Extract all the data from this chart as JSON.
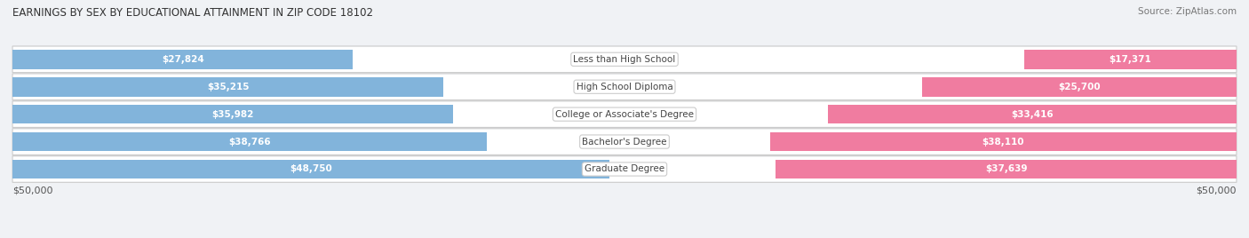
{
  "title": "EARNINGS BY SEX BY EDUCATIONAL ATTAINMENT IN ZIP CODE 18102",
  "source": "Source: ZipAtlas.com",
  "categories": [
    "Less than High School",
    "High School Diploma",
    "College or Associate's Degree",
    "Bachelor's Degree",
    "Graduate Degree"
  ],
  "male_values": [
    27824,
    35215,
    35982,
    38766,
    48750
  ],
  "female_values": [
    17371,
    25700,
    33416,
    38110,
    37639
  ],
  "male_color": "#82b4db",
  "female_color": "#f07ca0",
  "max_value": 50000,
  "bg_color": "#f0f2f5",
  "row_bg": "#e8eaed",
  "axis_label_left": "$50,000",
  "axis_label_right": "$50,000"
}
